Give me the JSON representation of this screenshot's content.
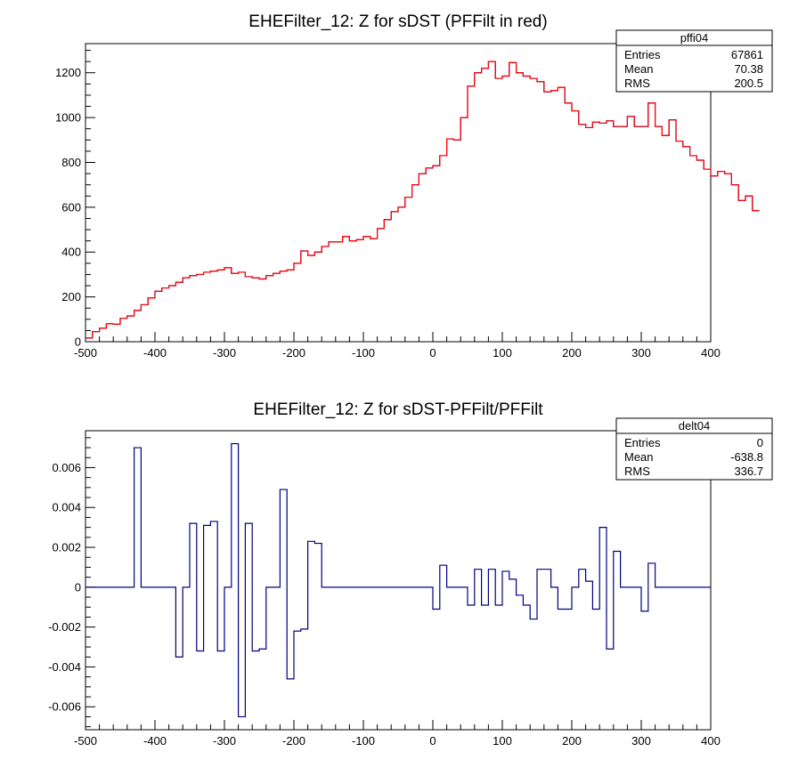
{
  "chart_data": [
    {
      "type": "histogram",
      "title": "EHEFilter_12: Z for sDST (PFFilt in red)",
      "xlim": [
        -500,
        400
      ],
      "ylim": [
        0,
        1330
      ],
      "bin_width": 10,
      "x_ticks": [
        -500,
        -400,
        -300,
        -200,
        -100,
        0,
        100,
        200,
        300,
        400
      ],
      "y_ticks": [
        0,
        200,
        400,
        600,
        800,
        1000,
        1200
      ],
      "series": [
        {
          "color": "#00007f",
          "values": [
            17,
            45,
            60,
            80,
            78,
            105,
            115,
            140,
            165,
            195,
            225,
            240,
            250,
            265,
            285,
            295,
            300,
            310,
            315,
            320,
            330,
            305,
            310,
            290,
            285,
            280,
            295,
            305,
            315,
            320,
            350,
            405,
            385,
            400,
            425,
            445,
            445,
            470,
            450,
            455,
            470,
            460,
            505,
            545,
            580,
            600,
            645,
            700,
            750,
            775,
            785,
            830,
            905,
            900,
            1000,
            1140,
            1200,
            1220,
            1250,
            1175,
            1185,
            1245,
            1200,
            1185,
            1175,
            1160,
            1115,
            1120,
            1135,
            1065,
            1030,
            970,
            955,
            980,
            975,
            985,
            960,
            960,
            1005,
            960,
            960,
            1065,
            960,
            920,
            990,
            895,
            870,
            830,
            810,
            770,
            740,
            760,
            750,
            700,
            630,
            650,
            585
          ]
        },
        {
          "color": "#ff0000",
          "values": [
            17,
            45,
            60,
            80,
            78,
            105,
            115,
            140,
            165,
            195,
            225,
            240,
            250,
            265,
            285,
            295,
            300,
            310,
            315,
            320,
            330,
            305,
            310,
            290,
            285,
            280,
            295,
            305,
            315,
            320,
            350,
            405,
            385,
            400,
            425,
            445,
            445,
            470,
            450,
            455,
            470,
            460,
            505,
            545,
            580,
            600,
            645,
            700,
            750,
            775,
            785,
            830,
            905,
            900,
            1000,
            1140,
            1200,
            1220,
            1250,
            1175,
            1185,
            1245,
            1200,
            1185,
            1175,
            1160,
            1115,
            1120,
            1135,
            1065,
            1030,
            970,
            955,
            980,
            975,
            985,
            960,
            960,
            1005,
            960,
            960,
            1065,
            960,
            920,
            990,
            895,
            870,
            830,
            810,
            770,
            740,
            760,
            750,
            700,
            630,
            650,
            585
          ]
        }
      ],
      "stats": {
        "name": "pffi04",
        "rows": [
          {
            "label": "Entries",
            "value": "67861"
          },
          {
            "label": "Mean",
            "value": "70.38"
          },
          {
            "label": "RMS",
            "value": "200.5"
          }
        ]
      }
    },
    {
      "type": "histogram",
      "title": "EHEFilter_12: Z for sDST-PFFilt/PFFilt",
      "xlim": [
        -500,
        400
      ],
      "ylim": [
        -0.00715,
        0.00785
      ],
      "bin_width": 10,
      "x_ticks": [
        -500,
        -400,
        -300,
        -200,
        -100,
        0,
        100,
        200,
        300,
        400
      ],
      "y_ticks": [
        -0.006,
        -0.004,
        -0.002,
        0,
        0.002,
        0.004,
        0.006
      ],
      "y_tick_labels": [
        "-0.006",
        "-0.004",
        "-0.002",
        "0",
        "0.002",
        "0.004",
        "0.006"
      ],
      "series": [
        {
          "color": "#00007f",
          "values": [
            0,
            0,
            0,
            0,
            0,
            0,
            0,
            0.007,
            0,
            0,
            0,
            0,
            0,
            -0.0035,
            0,
            0.0032,
            -0.0032,
            0.0031,
            0.0033,
            -0.0032,
            0,
            0.0072,
            -0.0065,
            0.0032,
            -0.0032,
            -0.0031,
            0,
            0,
            0.0049,
            -0.0046,
            -0.0022,
            -0.0021,
            0.0023,
            0.0022,
            0,
            0,
            0,
            0,
            0,
            0,
            0,
            0,
            0,
            0,
            0,
            0,
            0,
            0,
            0,
            0,
            -0.0011,
            0.0011,
            0,
            0,
            0,
            -0.0009,
            0.0009,
            -0.0009,
            0.0009,
            -0.0009,
            0.0008,
            0.0004,
            -0.0004,
            -0.0009,
            -0.0016,
            0.0009,
            0.0009,
            0,
            -0.0011,
            -0.0011,
            0,
            0.0009,
            0.0003,
            -0.0011,
            0.003,
            -0.0031,
            0.0018,
            0,
            0,
            0,
            -0.0012,
            0.0012,
            0,
            0,
            0,
            0,
            0,
            0,
            0,
            0
          ]
        }
      ],
      "stats": {
        "name": "delt04",
        "rows": [
          {
            "label": "Entries",
            "value": "0"
          },
          {
            "label": "Mean",
            "value": "-638.8"
          },
          {
            "label": "RMS",
            "value": "336.7"
          }
        ]
      }
    }
  ]
}
